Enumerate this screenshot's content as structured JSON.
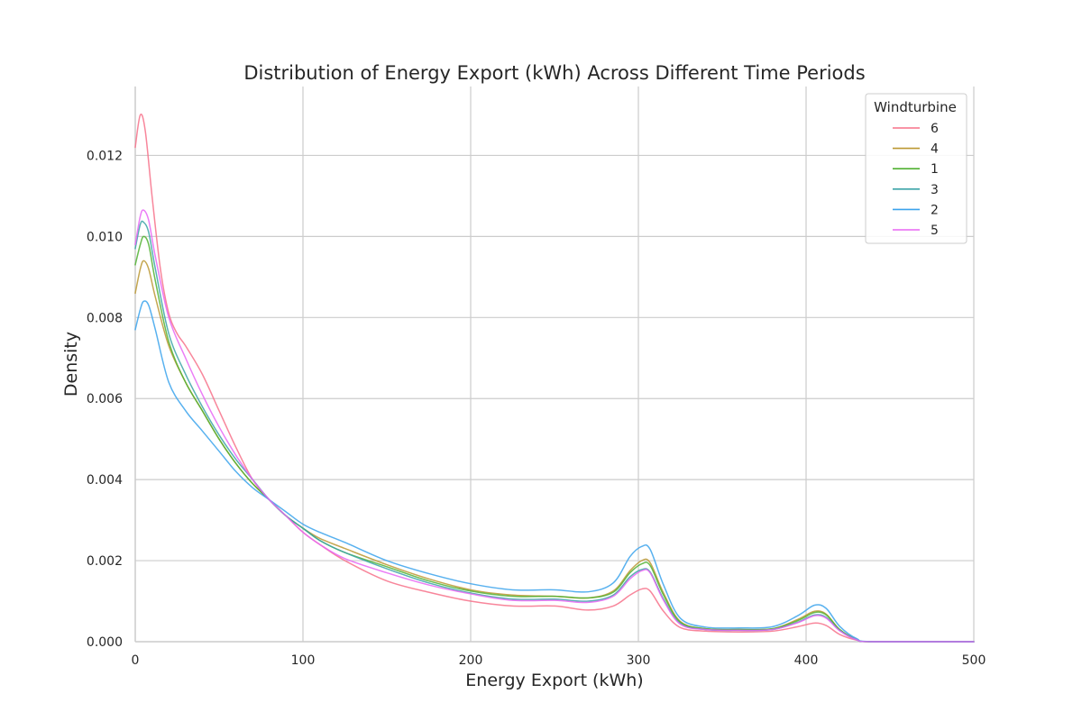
{
  "chart_data": {
    "type": "line",
    "title": "Distribution of Energy Export (kWh) Across Different Time Periods",
    "xlabel": "Energy Export (kWh)",
    "ylabel": "Density",
    "xlim": [
      0,
      500
    ],
    "ylim": [
      0,
      0.0137
    ],
    "x_ticks": [
      0,
      100,
      200,
      300,
      400,
      500
    ],
    "y_ticks": [
      0.0,
      0.002,
      0.004,
      0.006,
      0.008,
      0.01,
      0.012
    ],
    "x_tick_labels": [
      "0",
      "100",
      "200",
      "300",
      "400",
      "500"
    ],
    "y_tick_labels": [
      "0.000",
      "0.002",
      "0.004",
      "0.006",
      "0.008",
      "0.010",
      "0.012"
    ],
    "grid": true,
    "legend": {
      "title": "Windturbine",
      "position": "top-right"
    },
    "series": [
      {
        "name": "6",
        "color": "#f77189",
        "points": [
          [
            0,
            0.0122
          ],
          [
            3,
            0.013
          ],
          [
            6,
            0.0126
          ],
          [
            10,
            0.011
          ],
          [
            15,
            0.0092
          ],
          [
            20,
            0.0081
          ],
          [
            25,
            0.0076
          ],
          [
            30,
            0.0073
          ],
          [
            40,
            0.0066
          ],
          [
            50,
            0.0057
          ],
          [
            60,
            0.0048
          ],
          [
            70,
            0.004
          ],
          [
            80,
            0.0035
          ],
          [
            90,
            0.0031
          ],
          [
            100,
            0.0027
          ],
          [
            110,
            0.0024
          ],
          [
            125,
            0.002
          ],
          [
            150,
            0.0015
          ],
          [
            175,
            0.00122
          ],
          [
            200,
            0.001
          ],
          [
            225,
            0.00088
          ],
          [
            250,
            0.00088
          ],
          [
            270,
            0.00078
          ],
          [
            285,
            0.00088
          ],
          [
            295,
            0.00115
          ],
          [
            302,
            0.0013
          ],
          [
            307,
            0.00125
          ],
          [
            315,
            0.00075
          ],
          [
            325,
            0.00035
          ],
          [
            340,
            0.00026
          ],
          [
            360,
            0.00024
          ],
          [
            380,
            0.00026
          ],
          [
            395,
            0.00037
          ],
          [
            405,
            0.00046
          ],
          [
            412,
            0.0004
          ],
          [
            420,
            0.00018
          ],
          [
            430,
            4e-05
          ],
          [
            440,
            0.0
          ],
          [
            500,
            0.0
          ]
        ]
      },
      {
        "name": "4",
        "color": "#bb9832",
        "points": [
          [
            0,
            0.0086
          ],
          [
            3,
            0.0092
          ],
          [
            5,
            0.0094
          ],
          [
            8,
            0.0092
          ],
          [
            12,
            0.0085
          ],
          [
            20,
            0.0073
          ],
          [
            30,
            0.0064
          ],
          [
            40,
            0.0057
          ],
          [
            50,
            0.005
          ],
          [
            60,
            0.0044
          ],
          [
            70,
            0.0039
          ],
          [
            80,
            0.0035
          ],
          [
            90,
            0.0031
          ],
          [
            100,
            0.0028
          ],
          [
            110,
            0.00255
          ],
          [
            125,
            0.0023
          ],
          [
            150,
            0.0019
          ],
          [
            175,
            0.00155
          ],
          [
            200,
            0.00128
          ],
          [
            225,
            0.00115
          ],
          [
            250,
            0.00112
          ],
          [
            270,
            0.00108
          ],
          [
            285,
            0.00125
          ],
          [
            295,
            0.00175
          ],
          [
            302,
            0.002
          ],
          [
            307,
            0.00195
          ],
          [
            315,
            0.0012
          ],
          [
            325,
            0.0005
          ],
          [
            340,
            0.00032
          ],
          [
            360,
            0.0003
          ],
          [
            380,
            0.00032
          ],
          [
            395,
            0.00055
          ],
          [
            405,
            0.00075
          ],
          [
            412,
            0.00068
          ],
          [
            420,
            0.0003
          ],
          [
            430,
            6e-05
          ],
          [
            440,
            0.0
          ],
          [
            500,
            0.0
          ]
        ]
      },
      {
        "name": "1",
        "color": "#50b131",
        "points": [
          [
            0,
            0.0093
          ],
          [
            3,
            0.0098
          ],
          [
            5,
            0.01
          ],
          [
            8,
            0.0098
          ],
          [
            12,
            0.0089
          ],
          [
            20,
            0.0074
          ],
          [
            30,
            0.0064
          ],
          [
            40,
            0.0057
          ],
          [
            50,
            0.005
          ],
          [
            60,
            0.0044
          ],
          [
            70,
            0.0039
          ],
          [
            80,
            0.0035
          ],
          [
            90,
            0.0031
          ],
          [
            100,
            0.0028
          ],
          [
            110,
            0.0025
          ],
          [
            125,
            0.0022
          ],
          [
            150,
            0.00185
          ],
          [
            175,
            0.0015
          ],
          [
            200,
            0.00125
          ],
          [
            225,
            0.00112
          ],
          [
            250,
            0.00112
          ],
          [
            270,
            0.00108
          ],
          [
            285,
            0.00122
          ],
          [
            295,
            0.0017
          ],
          [
            302,
            0.00192
          ],
          [
            307,
            0.00188
          ],
          [
            315,
            0.00115
          ],
          [
            325,
            0.00048
          ],
          [
            340,
            0.00032
          ],
          [
            360,
            0.0003
          ],
          [
            380,
            0.00032
          ],
          [
            395,
            0.00052
          ],
          [
            405,
            0.00072
          ],
          [
            412,
            0.00066
          ],
          [
            420,
            0.0003
          ],
          [
            430,
            6e-05
          ],
          [
            440,
            0.0
          ],
          [
            500,
            0.0
          ]
        ]
      },
      {
        "name": "3",
        "color": "#3ba3a7",
        "points": [
          [
            0,
            0.0097
          ],
          [
            3,
            0.0103
          ],
          [
            5,
            0.01035
          ],
          [
            8,
            0.0101
          ],
          [
            12,
            0.0092
          ],
          [
            20,
            0.0076
          ],
          [
            30,
            0.0066
          ],
          [
            40,
            0.0058
          ],
          [
            50,
            0.0051
          ],
          [
            60,
            0.0045
          ],
          [
            70,
            0.004
          ],
          [
            80,
            0.0035
          ],
          [
            90,
            0.0031
          ],
          [
            100,
            0.0028
          ],
          [
            110,
            0.0025
          ],
          [
            125,
            0.0022
          ],
          [
            150,
            0.0018
          ],
          [
            175,
            0.00145
          ],
          [
            200,
            0.0012
          ],
          [
            225,
            0.00105
          ],
          [
            250,
            0.00105
          ],
          [
            270,
            0.001
          ],
          [
            285,
            0.00115
          ],
          [
            295,
            0.0016
          ],
          [
            302,
            0.00178
          ],
          [
            307,
            0.00172
          ],
          [
            315,
            0.00105
          ],
          [
            325,
            0.00045
          ],
          [
            340,
            0.0003
          ],
          [
            360,
            0.00028
          ],
          [
            380,
            0.0003
          ],
          [
            395,
            0.00048
          ],
          [
            405,
            0.00066
          ],
          [
            412,
            0.0006
          ],
          [
            420,
            0.00028
          ],
          [
            430,
            5e-05
          ],
          [
            440,
            0.0
          ],
          [
            500,
            0.0
          ]
        ]
      },
      {
        "name": "2",
        "color": "#3ba3ec",
        "points": [
          [
            0,
            0.0077
          ],
          [
            3,
            0.0082
          ],
          [
            5,
            0.0084
          ],
          [
            8,
            0.0083
          ],
          [
            12,
            0.0077
          ],
          [
            20,
            0.0064
          ],
          [
            30,
            0.0057
          ],
          [
            40,
            0.0052
          ],
          [
            50,
            0.0047
          ],
          [
            60,
            0.0042
          ],
          [
            70,
            0.0038
          ],
          [
            80,
            0.0035
          ],
          [
            90,
            0.0032
          ],
          [
            100,
            0.0029
          ],
          [
            110,
            0.0027
          ],
          [
            125,
            0.00245
          ],
          [
            150,
            0.002
          ],
          [
            175,
            0.00168
          ],
          [
            200,
            0.00143
          ],
          [
            225,
            0.00128
          ],
          [
            250,
            0.00128
          ],
          [
            270,
            0.00123
          ],
          [
            285,
            0.00145
          ],
          [
            295,
            0.0021
          ],
          [
            302,
            0.00235
          ],
          [
            307,
            0.00228
          ],
          [
            315,
            0.0014
          ],
          [
            325,
            0.00058
          ],
          [
            340,
            0.00036
          ],
          [
            360,
            0.00034
          ],
          [
            380,
            0.00037
          ],
          [
            395,
            0.00064
          ],
          [
            405,
            0.0009
          ],
          [
            412,
            0.00082
          ],
          [
            420,
            0.00038
          ],
          [
            430,
            8e-05
          ],
          [
            440,
            0.0
          ],
          [
            500,
            0.0
          ]
        ]
      },
      {
        "name": "5",
        "color": "#e866f4",
        "points": [
          [
            0,
            0.0098
          ],
          [
            3,
            0.0105
          ],
          [
            5,
            0.01065
          ],
          [
            8,
            0.0104
          ],
          [
            12,
            0.0095
          ],
          [
            20,
            0.008
          ],
          [
            30,
            0.007
          ],
          [
            40,
            0.0061
          ],
          [
            50,
            0.0053
          ],
          [
            60,
            0.0046
          ],
          [
            70,
            0.004
          ],
          [
            80,
            0.0035
          ],
          [
            90,
            0.0031
          ],
          [
            100,
            0.0027
          ],
          [
            110,
            0.0024
          ],
          [
            125,
            0.00205
          ],
          [
            150,
            0.0017
          ],
          [
            175,
            0.0014
          ],
          [
            200,
            0.00118
          ],
          [
            225,
            0.00102
          ],
          [
            250,
            0.00102
          ],
          [
            270,
            0.00097
          ],
          [
            285,
            0.00112
          ],
          [
            295,
            0.00155
          ],
          [
            302,
            0.00175
          ],
          [
            307,
            0.0017
          ],
          [
            315,
            0.00102
          ],
          [
            325,
            0.00043
          ],
          [
            340,
            0.0003
          ],
          [
            360,
            0.00028
          ],
          [
            380,
            0.0003
          ],
          [
            395,
            0.00047
          ],
          [
            405,
            0.00064
          ],
          [
            412,
            0.00058
          ],
          [
            420,
            0.00027
          ],
          [
            430,
            5e-05
          ],
          [
            440,
            0.0
          ],
          [
            500,
            0.0
          ]
        ]
      }
    ]
  }
}
